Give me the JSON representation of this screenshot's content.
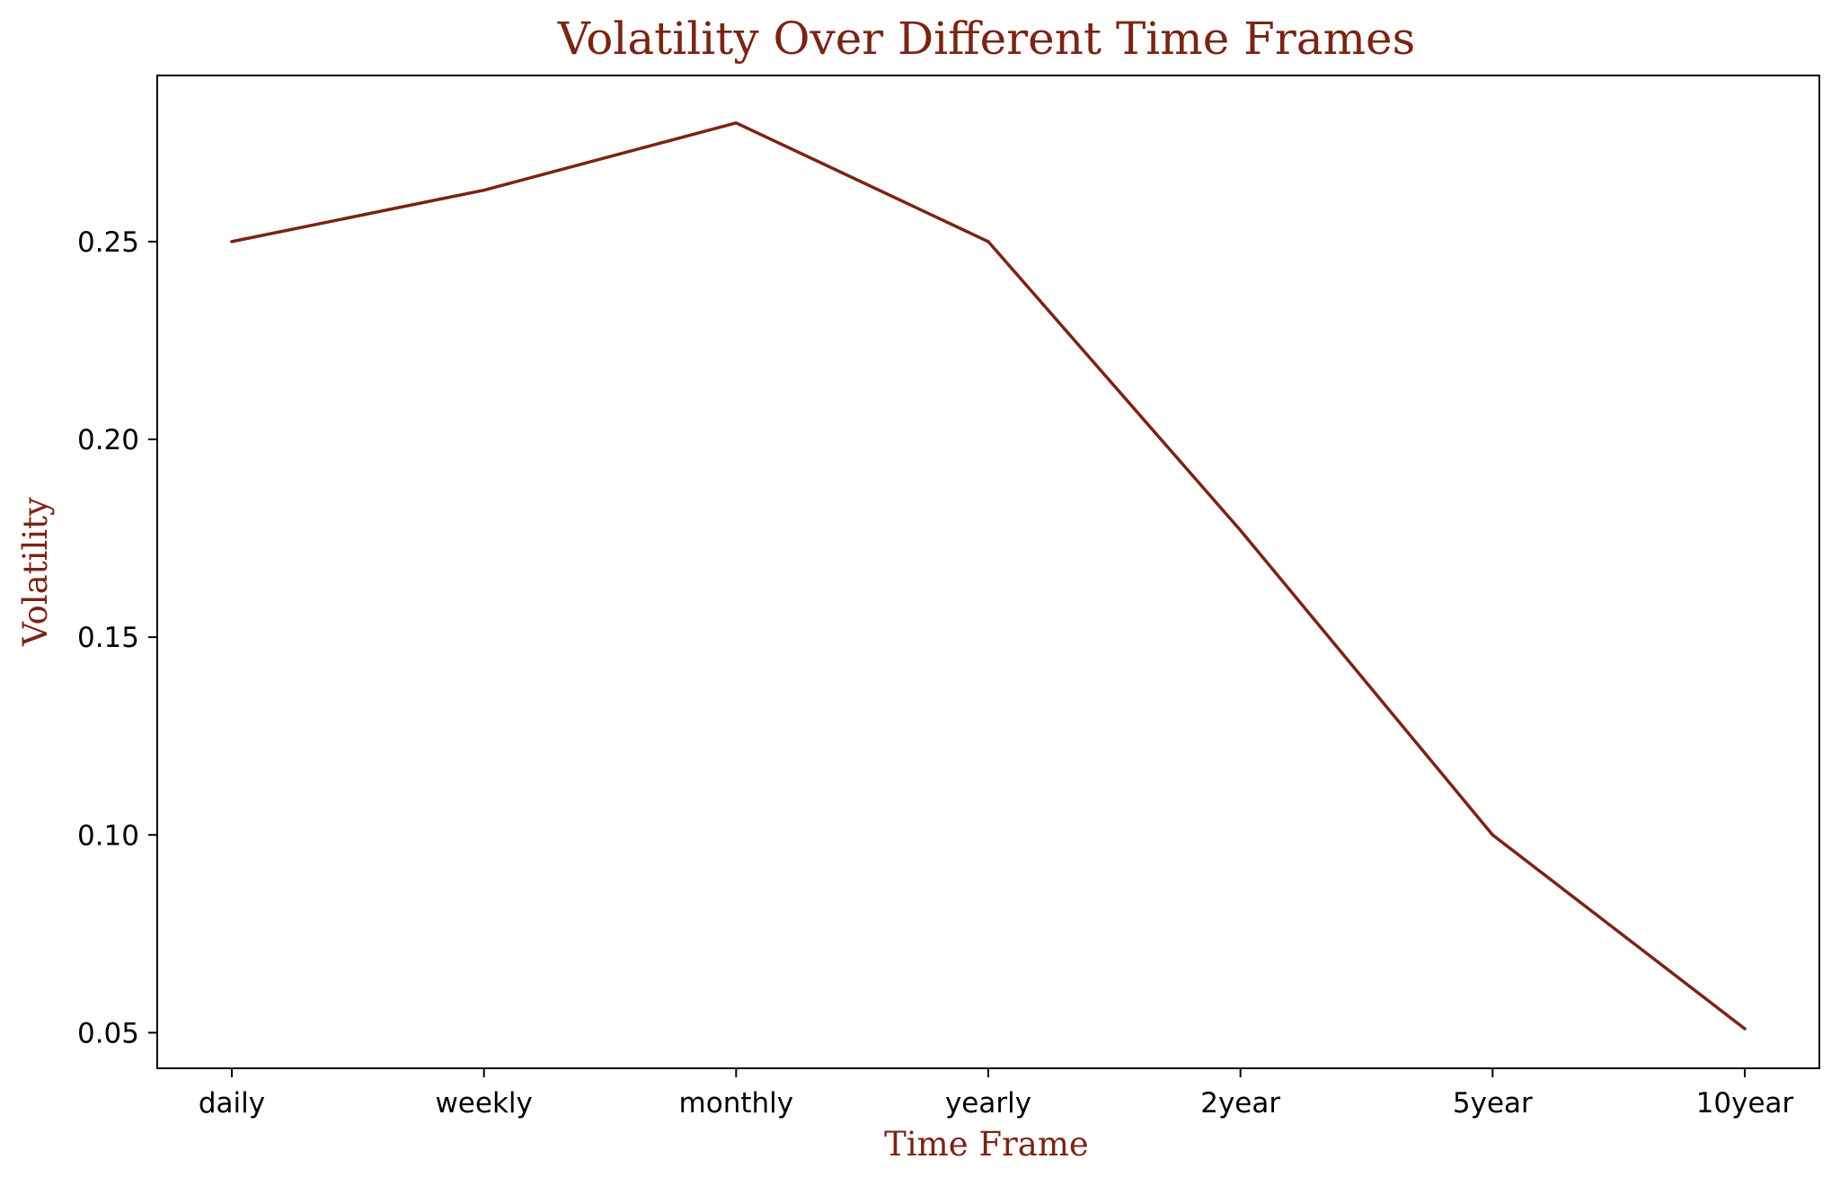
{
  "chart_data": {
    "type": "line",
    "title": "Volatility Over Different Time Frames",
    "xlabel": "Time Frame",
    "ylabel": "Volatility",
    "categories": [
      "daily",
      "weekly",
      "monthly",
      "yearly",
      "2year",
      "5year",
      "10year"
    ],
    "series": [
      {
        "values": [
          0.25,
          0.263,
          0.28,
          0.25,
          0.177,
          0.1,
          0.051
        ]
      }
    ],
    "ylim": [
      0.041,
      0.292
    ],
    "yticks": [
      "0.05",
      "0.10",
      "0.15",
      "0.20",
      "0.25"
    ],
    "grid": false,
    "colors": {
      "line": "#7a2414",
      "text_accent": "#7a2414",
      "axes": "#000000"
    }
  }
}
